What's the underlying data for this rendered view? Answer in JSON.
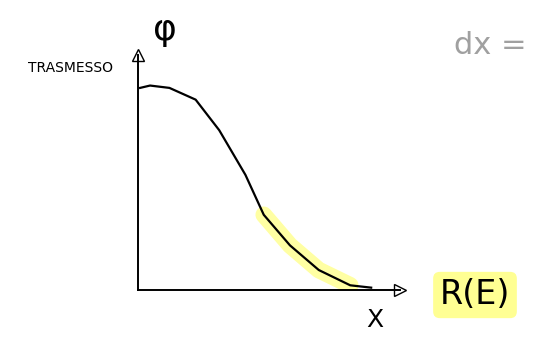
{
  "chart_data": {
    "type": "line",
    "x": [
      0.08,
      0.46,
      1.2,
      2.2,
      3.1,
      4.1,
      4.8,
      5.8,
      6.9,
      8.1,
      8.9
    ],
    "series": [
      {
        "color": "#000000",
        "line_style": "solid",
        "values": [
          8.6,
          8.7,
          8.6,
          8.1,
          6.8,
          4.9,
          3.2,
          1.9,
          0.85,
          0.2,
          0.1
        ]
      },
      {
        "color": "#ffff66",
        "line_style": "highlight",
        "values": [
          null,
          null,
          null,
          null,
          null,
          null,
          3.2,
          1.9,
          0.85,
          0.2,
          null
        ]
      }
    ],
    "xlim": [
      0,
      10
    ],
    "ylim": [
      0,
      10
    ],
    "xticks": [],
    "yticks": [],
    "tick_labels": false,
    "grid": false,
    "annotations": [
      "φ",
      "TRASMESSO",
      "X",
      "R(E)",
      "dx ="
    ]
  }
}
